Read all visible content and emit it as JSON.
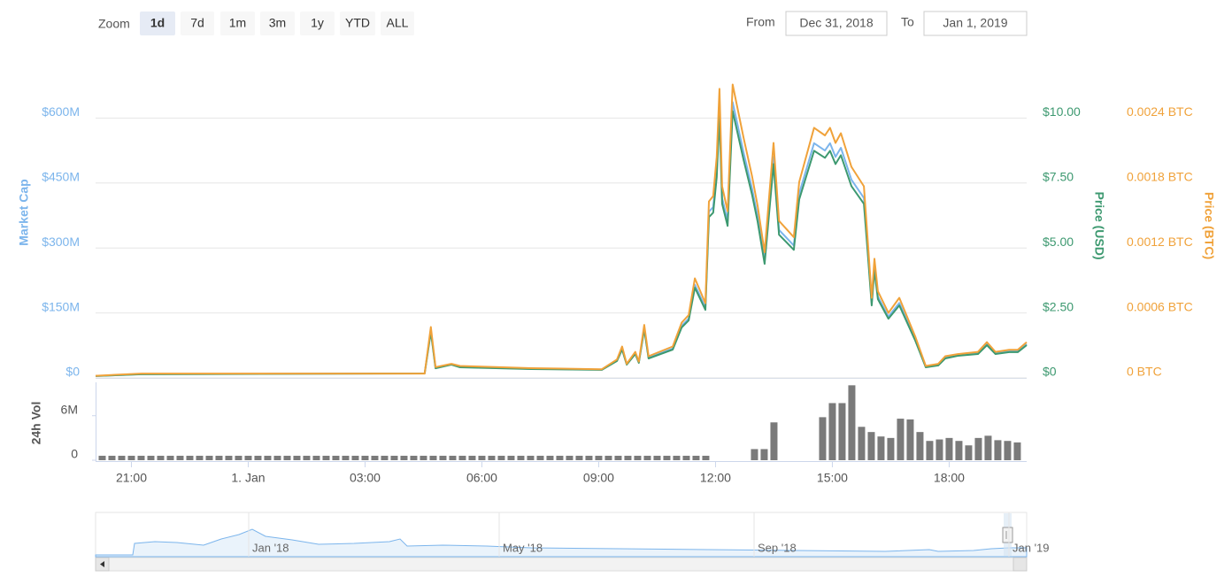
{
  "controls": {
    "zoom": {
      "label": "Zoom",
      "buttons": [
        "1d",
        "7d",
        "1m",
        "3m",
        "1y",
        "YTD",
        "ALL"
      ],
      "selected": 0
    },
    "range": {
      "from_label": "From",
      "from": "Dec 31, 2018",
      "to_label": "To",
      "to": "Jan 1, 2019"
    }
  },
  "chart_data": [
    {
      "type": "line",
      "grid": true,
      "x": [
        20.08,
        21.26,
        28.53,
        28.69,
        28.81,
        29.22,
        29.44,
        31.26,
        33.08,
        33.47,
        33.6,
        33.72,
        33.94,
        34.03,
        34.17,
        34.28,
        34.9,
        35.13,
        35.31,
        35.47,
        35.74,
        35.83,
        35.94,
        36.03,
        36.1,
        36.17,
        36.31,
        36.44,
        36.72,
        36.94,
        37.08,
        37.26,
        37.49,
        37.63,
        38.01,
        38.15,
        38.53,
        38.81,
        38.94,
        39.08,
        39.22,
        39.49,
        39.81,
        39.9,
        40.01,
        40.08,
        40.17,
        40.44,
        40.72,
        41.13,
        41.4,
        41.72,
        41.9,
        42.22,
        42.74,
        42.97,
        43.19,
        43.54,
        43.76,
        43.99
      ],
      "xlim": [
        20.08,
        43.99
      ],
      "ylim": [
        0,
        750000000
      ],
      "yticks": [
        {
          "value": 0,
          "label": "$0"
        },
        {
          "value": 150000000,
          "label": "$150M"
        },
        {
          "value": 300000000,
          "label": "$300M"
        },
        {
          "value": 450000000,
          "label": "$450M"
        },
        {
          "value": 600000000,
          "label": "$600M"
        }
      ],
      "y2lim": [
        0,
        12.5
      ],
      "y2ticks": [
        {
          "value": 0,
          "label": "$0"
        },
        {
          "value": 2.5,
          "label": "$2.50"
        },
        {
          "value": 5,
          "label": "$5.00"
        },
        {
          "value": 7.5,
          "label": "$7.50"
        },
        {
          "value": 10,
          "label": "$10.00"
        }
      ],
      "y3lim": [
        0,
        0.003
      ],
      "y3ticks": [
        {
          "value": 0,
          "label": "0 BTC"
        },
        {
          "value": 0.0006,
          "label": "0.0006 BTC"
        },
        {
          "value": 0.0012,
          "label": "0.0012 BTC"
        },
        {
          "value": 0.0018,
          "label": "0.0018 BTC"
        },
        {
          "value": 0.0024,
          "label": "0.0024 BTC"
        }
      ],
      "series": [
        {
          "name": "Market Cap",
          "color": "#7cb5ec",
          "axis": "y",
          "values": [
            4300000,
            8700000,
            10500000,
            109700000,
            22900000,
            31600000,
            25400000,
            21100000,
            19200000,
            40300000,
            67600000,
            31600000,
            57000000,
            36000000,
            115900000,
            46500000,
            67600000,
            120300000,
            137000000,
            215100000,
            162400000,
            383800000,
            394300000,
            478600000,
            626200000,
            415400000,
            362700000,
            636700000,
            520800000,
            436500000,
            373200000,
            272200000,
            510300000,
            341600000,
            305700000,
            425900000,
            541900000,
            525100000,
            541900000,
            510300000,
            531300000,
            457600000,
            415400000,
            310000000,
            173000000,
            257300000,
            187900000,
            141400000,
            173000000,
            88700000,
            25400000,
            29800000,
            46500000,
            52700000,
            57000000,
            78100000,
            57000000,
            61400000,
            61400000,
            78100000
          ]
        },
        {
          "name": "Price (USD)",
          "color": "#3d9970",
          "axis": "y2",
          "values": [
            0.07,
            0.14,
            0.17,
            1.77,
            0.37,
            0.51,
            0.41,
            0.34,
            0.31,
            0.65,
            1.09,
            0.51,
            0.92,
            0.58,
            1.87,
            0.75,
            1.09,
            1.94,
            2.21,
            3.47,
            2.62,
            6.19,
            6.36,
            7.72,
            10.1,
            6.7,
            5.85,
            10.27,
            8.4,
            7.04,
            6.02,
            4.39,
            8.23,
            5.51,
            4.93,
            6.87,
            8.74,
            8.47,
            8.74,
            8.23,
            8.57,
            7.38,
            6.7,
            5,
            2.79,
            4.15,
            3.03,
            2.28,
            2.79,
            1.43,
            0.41,
            0.48,
            0.75,
            0.85,
            0.92,
            1.26,
            0.92,
            0.99,
            0.99,
            1.26
          ]
        },
        {
          "name": "Price (BTC)",
          "color": "#f0a23a",
          "axis": "y3",
          "values": [
            2e-05,
            4e-05,
            4e-05,
            0.00047,
            0.0001,
            0.00013,
            0.00011,
            9e-05,
            8e-05,
            0.00017,
            0.00029,
            0.00013,
            0.00024,
            0.00015,
            0.00049,
            0.0002,
            0.00029,
            0.00051,
            0.00058,
            0.00092,
            0.00069,
            0.00163,
            0.00168,
            0.00204,
            0.00267,
            0.00177,
            0.00154,
            0.00271,
            0.00222,
            0.00186,
            0.00159,
            0.00116,
            0.00217,
            0.00145,
            0.0013,
            0.00181,
            0.00231,
            0.00224,
            0.00231,
            0.00217,
            0.00226,
            0.00195,
            0.00177,
            0.00132,
            0.00074,
            0.0011,
            0.0008,
            0.0006,
            0.00074,
            0.00038,
            0.00011,
            0.00013,
            0.0002,
            0.00022,
            0.00024,
            0.00033,
            0.00024,
            0.00026,
            0.00026,
            0.00033
          ]
        }
      ]
    },
    {
      "type": "bar",
      "y_label": "24h Vol",
      "color": "#7a7a7a",
      "grid": false,
      "x": [
        20.25,
        20.5,
        20.75,
        21,
        21.25,
        21.5,
        21.75,
        22,
        22.25,
        22.5,
        22.75,
        23,
        23.25,
        23.5,
        23.75,
        24,
        24.25,
        24.5,
        24.75,
        25,
        25.25,
        25.5,
        25.75,
        26,
        26.25,
        26.5,
        26.75,
        27,
        27.25,
        27.5,
        27.75,
        28,
        28.25,
        28.5,
        28.75,
        29,
        29.25,
        29.5,
        29.75,
        30,
        30.25,
        30.5,
        30.75,
        31,
        31.25,
        31.5,
        31.75,
        32,
        32.25,
        32.5,
        32.75,
        33,
        33.25,
        33.5,
        33.75,
        34,
        34.25,
        34.5,
        34.75,
        35,
        35.25,
        35.5,
        35.75,
        37,
        37.25,
        37.5,
        38.75,
        39,
        39.25,
        39.5,
        39.75,
        40,
        40.25,
        40.5,
        40.75,
        41,
        41.25,
        41.5,
        41.75,
        42,
        42.25,
        42.5,
        42.75,
        43,
        43.25,
        43.5,
        43.75
      ],
      "values": [
        600000,
        600000,
        600000,
        600000,
        600000,
        600000,
        600000,
        600000,
        600000,
        600000,
        600000,
        600000,
        600000,
        600000,
        600000,
        600000,
        600000,
        600000,
        600000,
        600000,
        600000,
        600000,
        600000,
        600000,
        600000,
        600000,
        600000,
        600000,
        600000,
        600000,
        600000,
        600000,
        600000,
        600000,
        600000,
        600000,
        600000,
        600000,
        600000,
        600000,
        600000,
        600000,
        600000,
        600000,
        600000,
        600000,
        600000,
        600000,
        600000,
        600000,
        600000,
        600000,
        600000,
        600000,
        600000,
        600000,
        600000,
        600000,
        600000,
        600000,
        600000,
        600000,
        600000,
        1500000,
        1500000,
        5100000,
        5800000,
        7700000,
        7700000,
        10100000,
        4500000,
        3800000,
        3200000,
        3000000,
        5600000,
        5500000,
        3800000,
        2600000,
        2800000,
        3000000,
        2600000,
        2000000,
        3000000,
        3300000,
        2700000,
        2600000,
        2400000
      ],
      "xlim": [
        20.08,
        43.99
      ],
      "xticks": [
        {
          "value": 21,
          "label": "21:00"
        },
        {
          "value": 24,
          "label": "1. Jan"
        },
        {
          "value": 27,
          "label": "03:00"
        },
        {
          "value": 30,
          "label": "06:00"
        },
        {
          "value": 33,
          "label": "09:00"
        },
        {
          "value": 36,
          "label": "12:00"
        },
        {
          "value": 39,
          "label": "15:00"
        },
        {
          "value": 42,
          "label": "18:00"
        }
      ],
      "ylim": [
        0,
        10500000
      ],
      "yticks": [
        0,
        {
          "value": 6000000,
          "label": "6M"
        }
      ]
    }
  ],
  "navigator": {
    "ticks": [
      "Jan '18",
      "May '18",
      "Sep '18",
      "Jan '19"
    ]
  }
}
